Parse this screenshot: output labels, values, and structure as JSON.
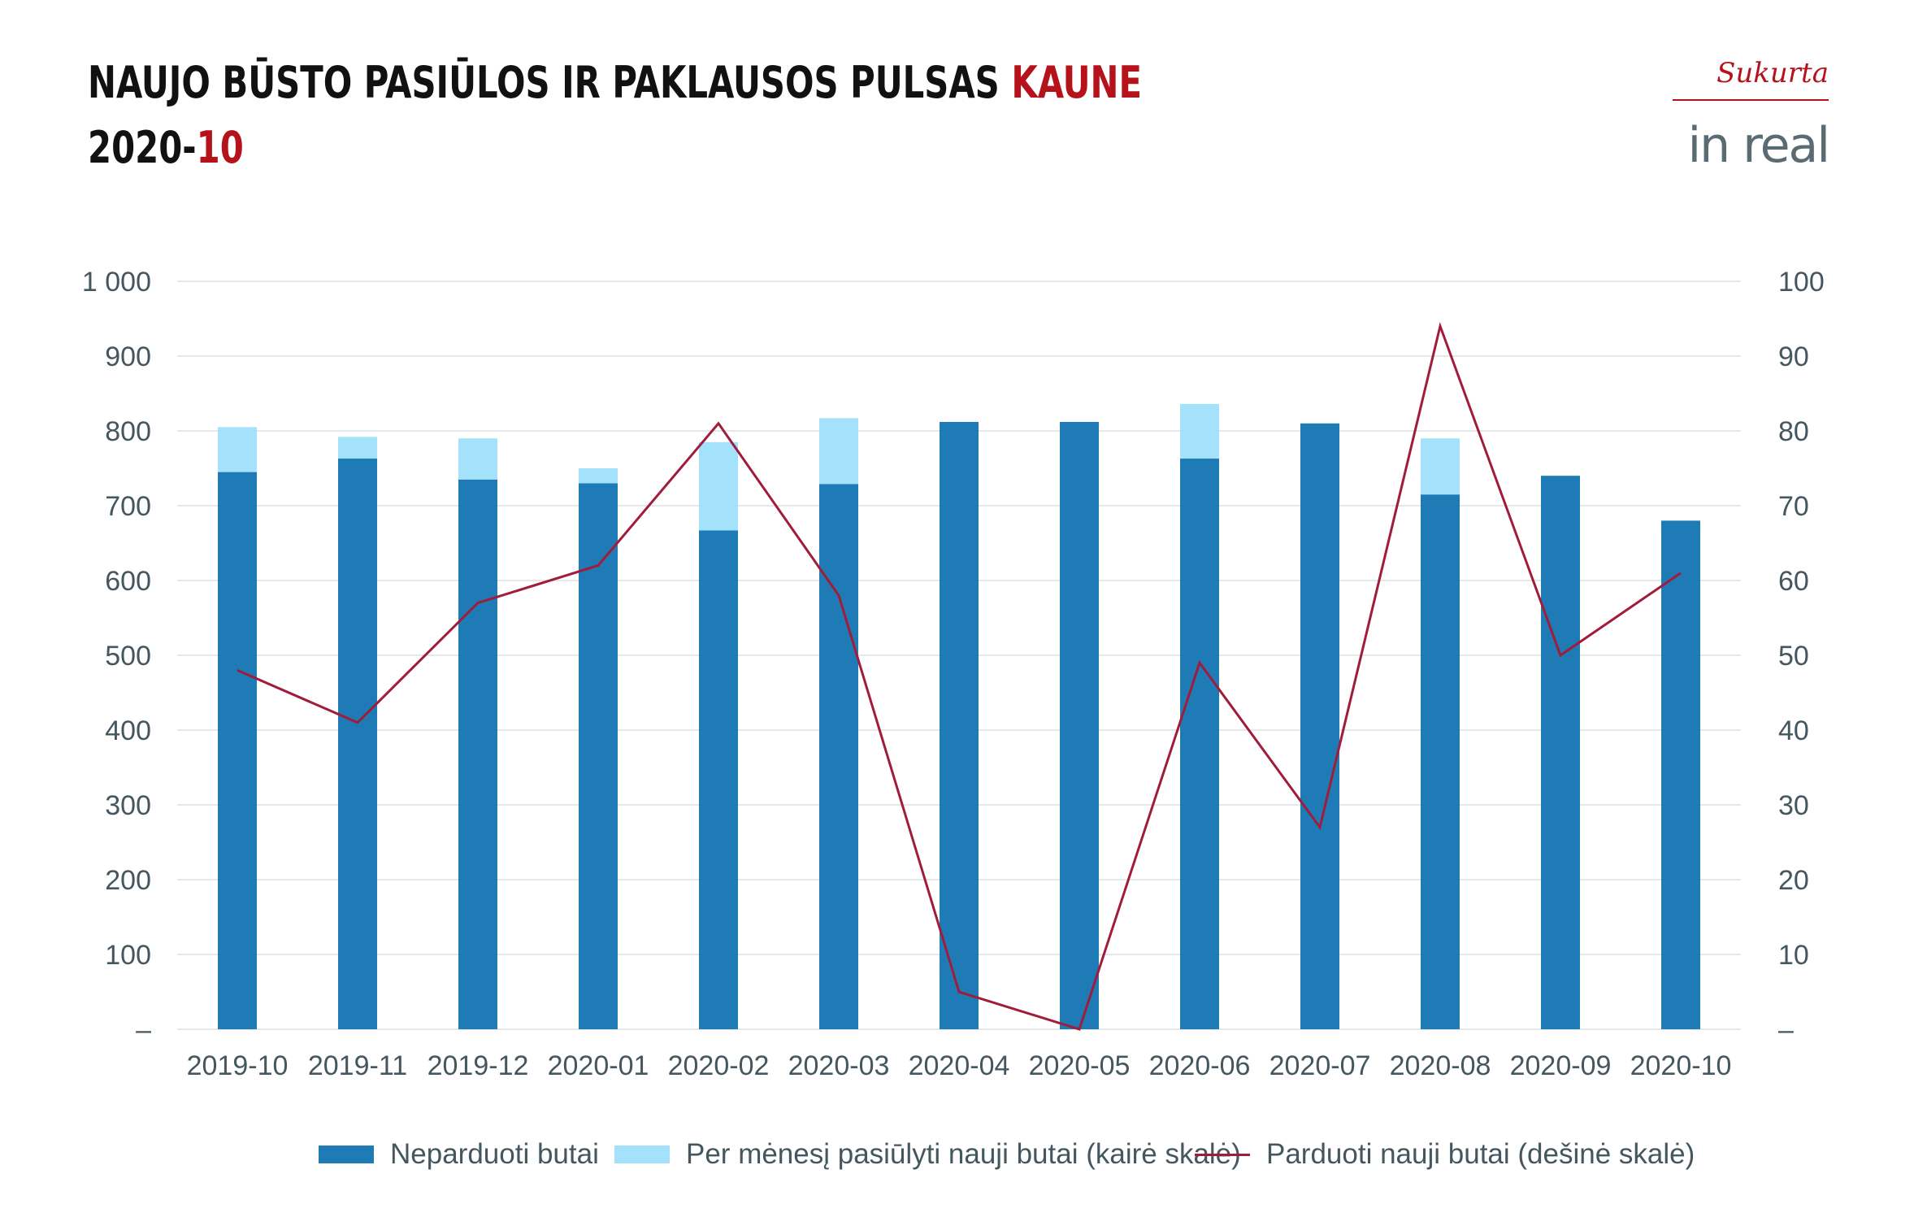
{
  "header": {
    "title_main": "NAUJO BŪSTO PASIŪLOS IR PAKLAUSOS PULSAS ",
    "title_city": "KAUNE",
    "subtitle_year": "2020-",
    "subtitle_month": "10"
  },
  "logo": {
    "tagline": "Sukurta",
    "brand": "in real"
  },
  "colors": {
    "unsold": "#1f7bb5",
    "new_offers": "#a4e1fb",
    "sold_line": "#a01c3a",
    "grid": "#e4e8ea",
    "accent": "#b5121b"
  },
  "chart_data": {
    "type": "bar",
    "stacked": true,
    "categories": [
      "2019-10",
      "2019-11",
      "2019-12",
      "2020-01",
      "2020-02",
      "2020-03",
      "2020-04",
      "2020-05",
      "2020-06",
      "2020-07",
      "2020-08",
      "2020-09",
      "2020-10"
    ],
    "series": [
      {
        "name": "Neparduoti butai",
        "type": "bar",
        "axis": "left",
        "values": [
          745,
          763,
          735,
          730,
          667,
          729,
          812,
          812,
          763,
          810,
          715,
          740,
          680
        ]
      },
      {
        "name": "Per mėnesį pasiūlyti nauji butai (kairė skalė)",
        "type": "bar",
        "axis": "left",
        "values": [
          60,
          29,
          55,
          20,
          118,
          88,
          0,
          0,
          73,
          0,
          75,
          0,
          0
        ]
      },
      {
        "name": "Parduoti nauji butai (dešinė skalė)",
        "type": "line",
        "axis": "right",
        "values": [
          48,
          41,
          57,
          62,
          81,
          58,
          5,
          0,
          49,
          27,
          94,
          50,
          61
        ]
      }
    ],
    "left_axis": {
      "ylim": [
        0,
        1000
      ],
      "ticks": [
        "–",
        "100",
        "200",
        "300",
        "400",
        "500",
        "600",
        "700",
        "800",
        "900",
        "1 000"
      ]
    },
    "right_axis": {
      "ylim": [
        0,
        100
      ],
      "ticks": [
        "–",
        "10",
        "20",
        "30",
        "40",
        "50",
        "60",
        "70",
        "80",
        "90",
        "100"
      ]
    },
    "grid": true,
    "legend_position": "bottom"
  }
}
